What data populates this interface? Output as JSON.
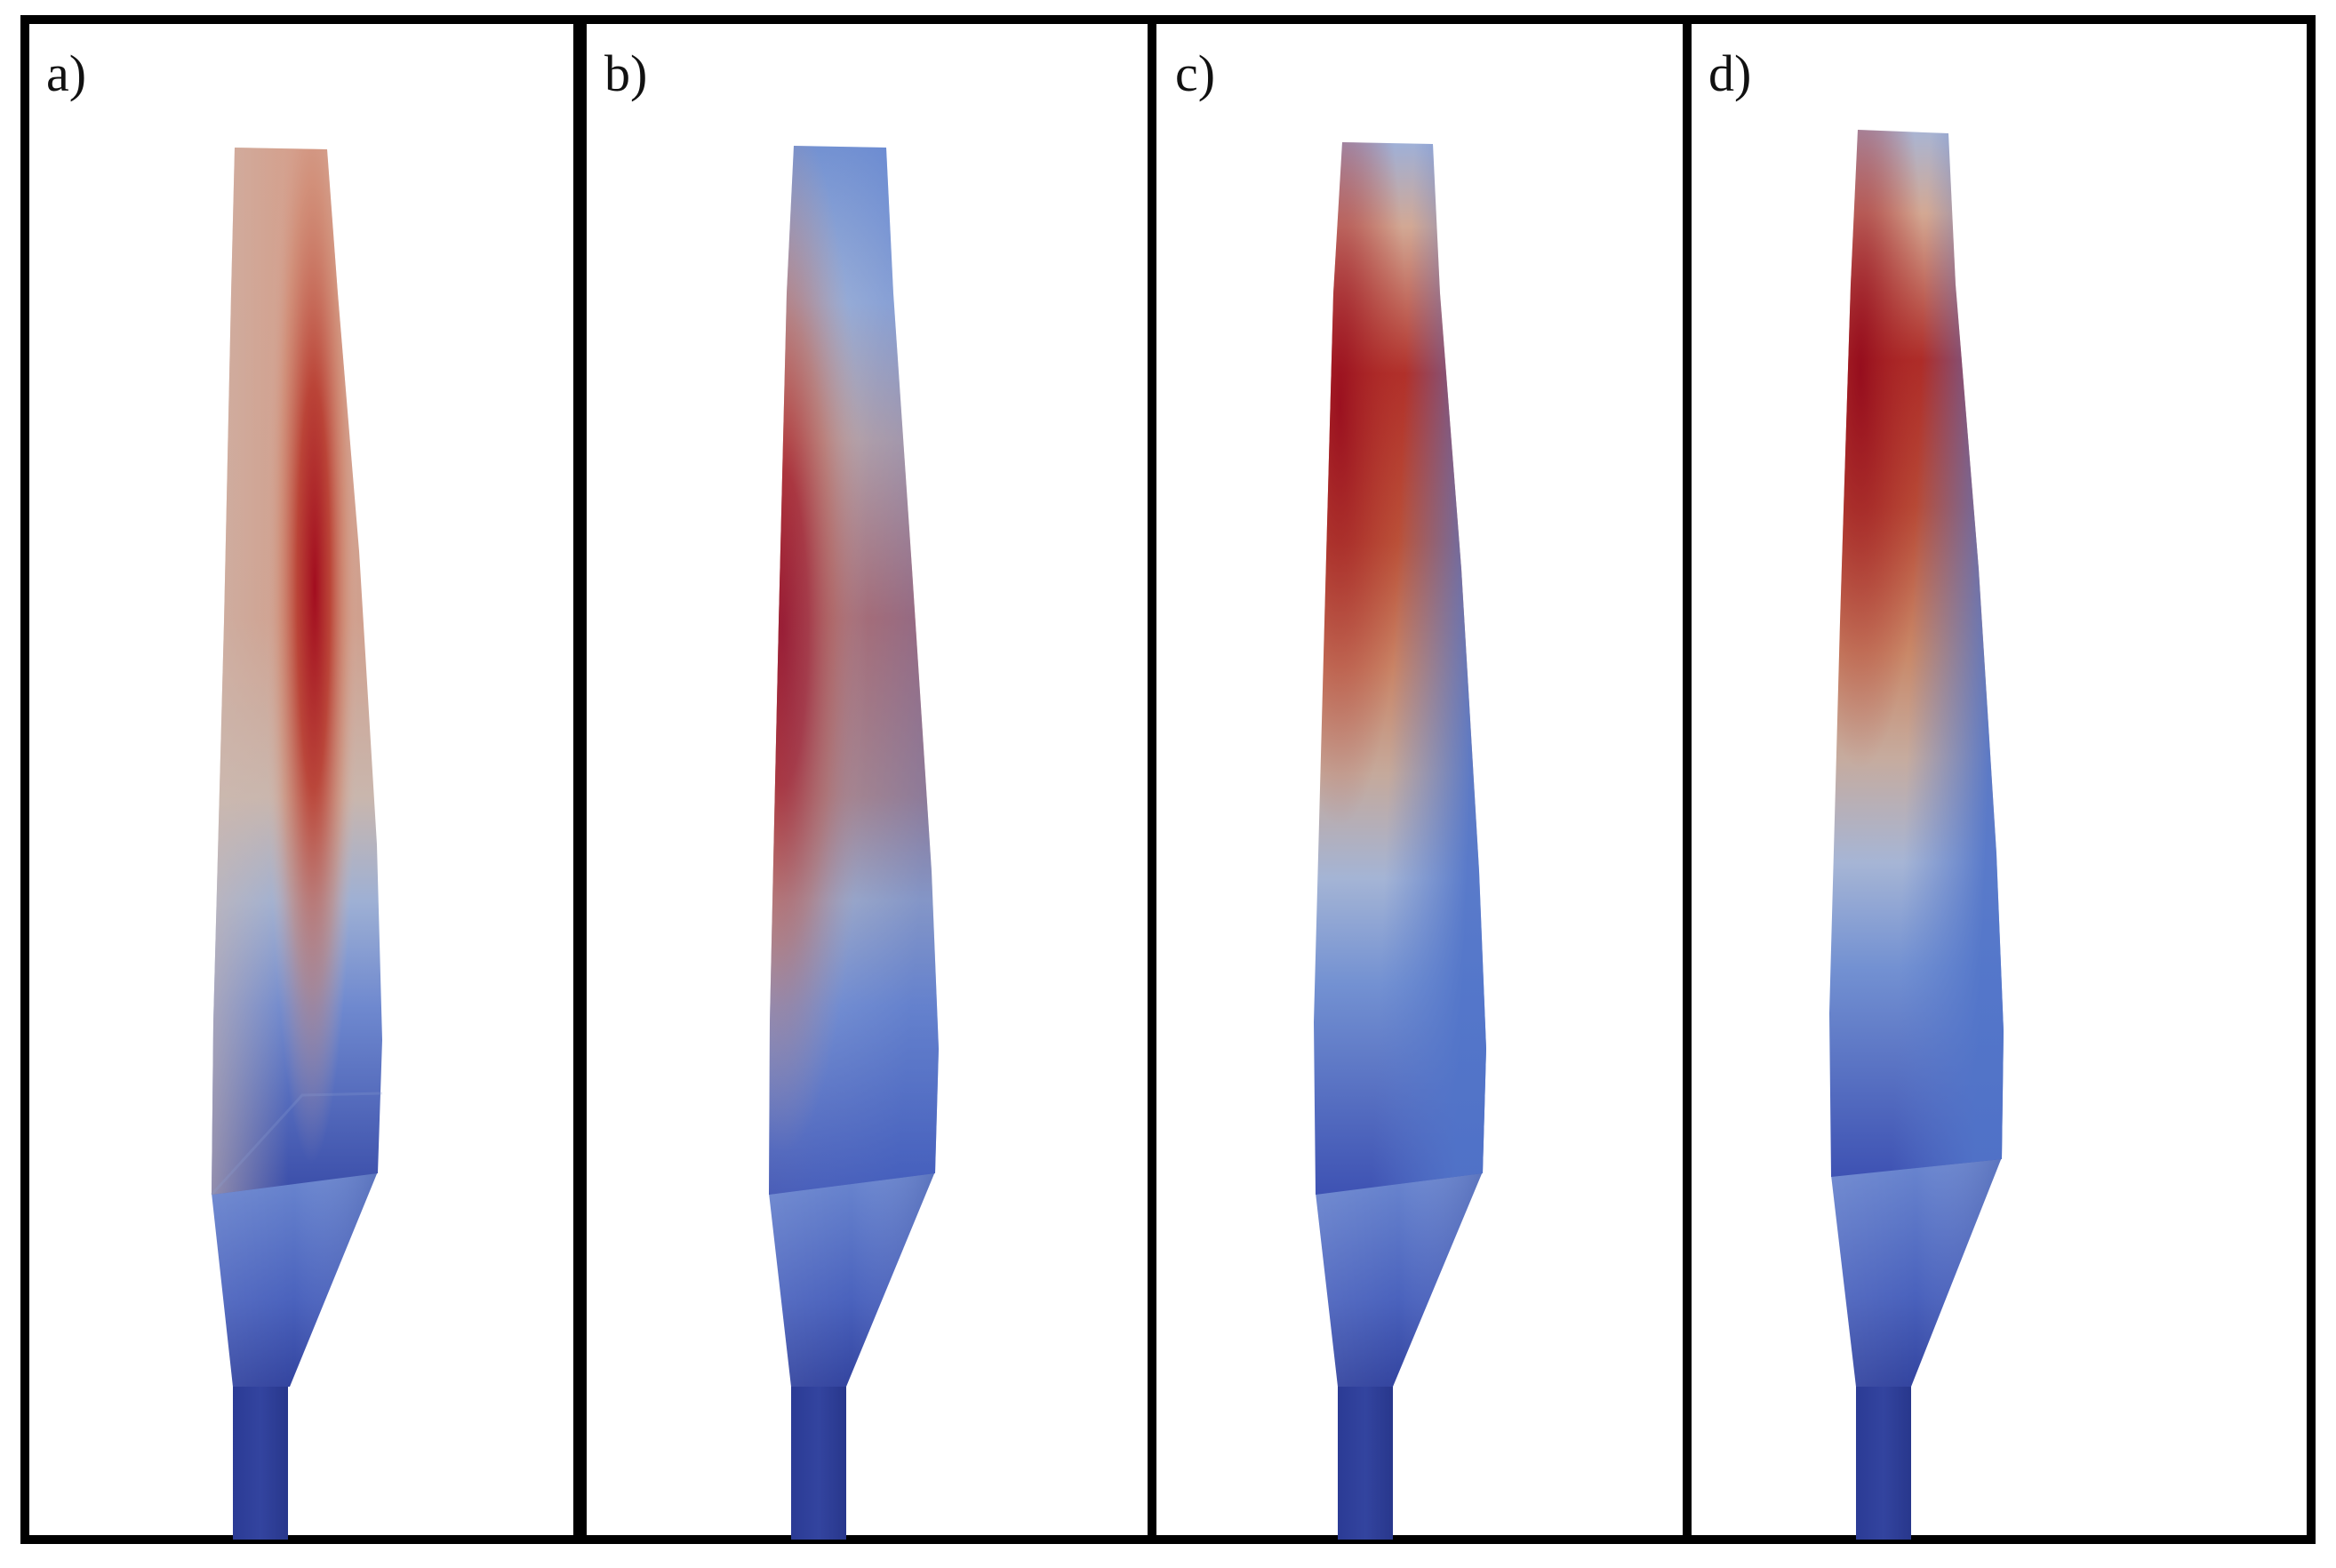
{
  "figure": {
    "panels": [
      {
        "label": "a)"
      },
      {
        "label": "b)"
      },
      {
        "label": "c)"
      },
      {
        "label": "d)"
      }
    ],
    "colormap": {
      "low": "#3b4cc0",
      "mid": "#c8c8c8",
      "high": "#a50b1d",
      "shaft": "#2e3e9a"
    },
    "frame_color": "#000000"
  }
}
